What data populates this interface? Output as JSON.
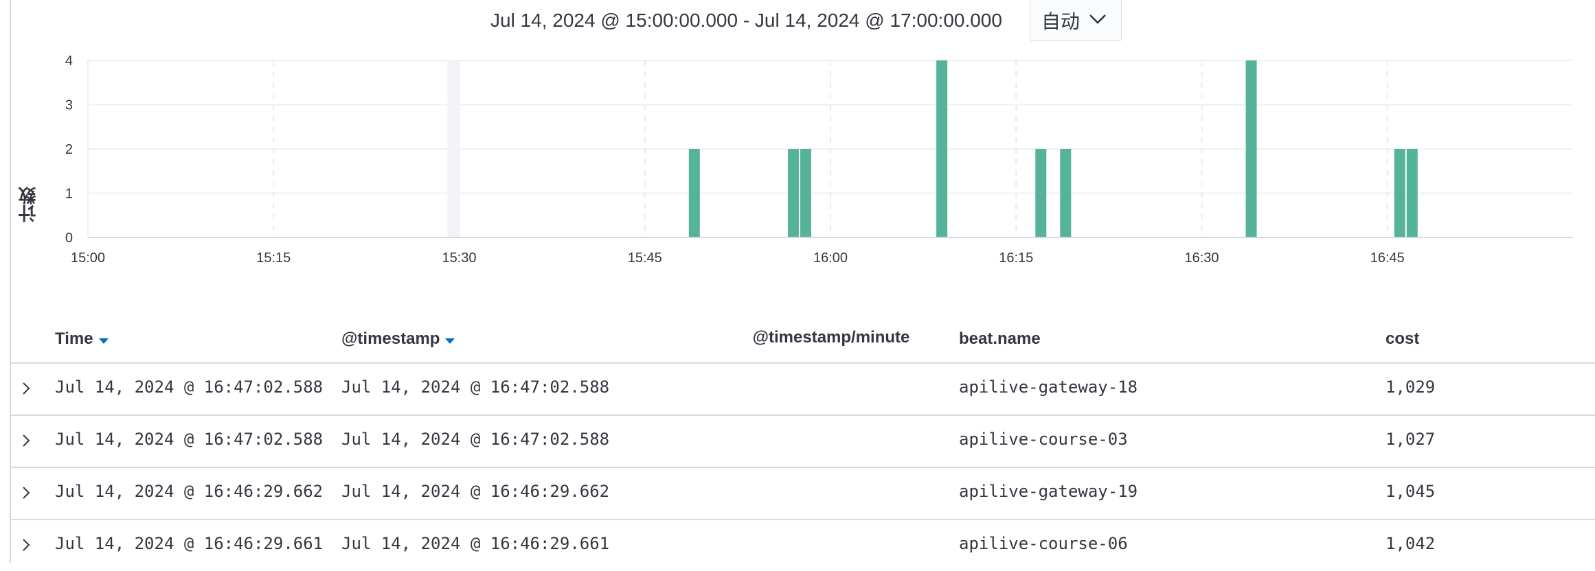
{
  "header": {
    "time_range": "Jul 14, 2024 @ 15:00:00.000 - Jul 14, 2024 @ 17:00:00.000",
    "interval": "自动"
  },
  "chart_data": {
    "type": "bar",
    "ylabel": "计数",
    "xlabel": "@timestamp/minute",
    "ylim": [
      0,
      4
    ],
    "yticks": [
      0,
      1,
      2,
      3,
      4
    ],
    "xlim": [
      "15:00",
      "17:00"
    ],
    "xticks": [
      "15:00",
      "15:15",
      "15:30",
      "15:45",
      "16:00",
      "16:15",
      "16:30",
      "16:45"
    ],
    "bar_color": "#54b399",
    "grid": true,
    "bars": [
      {
        "x": "15:49",
        "y": 2
      },
      {
        "x": "15:57",
        "y": 2
      },
      {
        "x": "15:58",
        "y": 2
      },
      {
        "x": "16:09",
        "y": 4
      },
      {
        "x": "16:17",
        "y": 2
      },
      {
        "x": "16:19",
        "y": 2
      },
      {
        "x": "16:34",
        "y": 4
      },
      {
        "x": "16:46",
        "y": 2
      },
      {
        "x": "16:47",
        "y": 2
      }
    ]
  },
  "table": {
    "columns": [
      {
        "label": "Time",
        "sortable": true
      },
      {
        "label": "@timestamp",
        "sortable": true
      },
      {
        "label": "beat.name",
        "sortable": false
      },
      {
        "label": "cost",
        "sortable": false
      }
    ],
    "rows": [
      {
        "time": "Jul 14, 2024 @ 16:47:02.588",
        "timestamp": "Jul 14, 2024 @ 16:47:02.588",
        "beat_name": "apilive-gateway-18",
        "cost": "1,029"
      },
      {
        "time": "Jul 14, 2024 @ 16:47:02.588",
        "timestamp": "Jul 14, 2024 @ 16:47:02.588",
        "beat_name": "apilive-course-03",
        "cost": "1,027"
      },
      {
        "time": "Jul 14, 2024 @ 16:46:29.662",
        "timestamp": "Jul 14, 2024 @ 16:46:29.662",
        "beat_name": "apilive-gateway-19",
        "cost": "1,045"
      },
      {
        "time": "Jul 14, 2024 @ 16:46:29.661",
        "timestamp": "Jul 14, 2024 @ 16:46:29.661",
        "beat_name": "apilive-course-06",
        "cost": "1,042"
      }
    ]
  }
}
